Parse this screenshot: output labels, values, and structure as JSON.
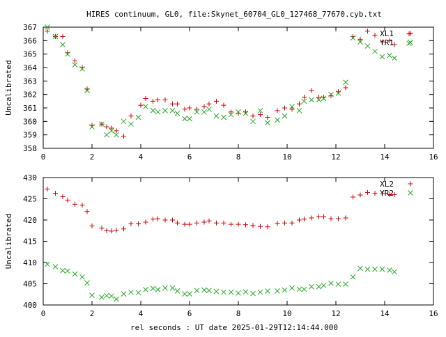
{
  "figure": {
    "title": "HIRES continuum, GL0, file:Skynet_60704_GL0_127468_77670.cyb.txt",
    "xlabel": "rel seconds : UT date 2025-01-29T12:14:44.000"
  },
  "colors": {
    "series_plus": "#cc0000",
    "series_cross": "#22aa22"
  },
  "chart_data": [
    {
      "type": "scatter",
      "ylabel": "Uncalibrated",
      "xlim": [
        0,
        16
      ],
      "ylim": [
        358,
        367
      ],
      "xticks": [
        0,
        2,
        4,
        6,
        8,
        10,
        12,
        14,
        16
      ],
      "yticks": [
        358,
        359,
        360,
        361,
        362,
        363,
        364,
        365,
        366,
        367
      ],
      "legend_position": "top-right",
      "series": [
        {
          "name": "XL1",
          "marker": "plus",
          "x": [
            0.17,
            0.5,
            0.8,
            1.0,
            1.3,
            1.6,
            1.8,
            2.0,
            2.4,
            2.6,
            2.8,
            3.0,
            3.3,
            3.6,
            4.0,
            4.2,
            4.5,
            4.7,
            5.0,
            5.3,
            5.5,
            5.8,
            6.0,
            6.3,
            6.6,
            6.8,
            7.1,
            7.4,
            7.7,
            8.0,
            8.3,
            8.6,
            8.9,
            9.2,
            9.6,
            9.9,
            10.2,
            10.5,
            10.7,
            11.0,
            11.3,
            11.5,
            11.8,
            12.1,
            12.4,
            12.7,
            13.0,
            13.3,
            13.6,
            13.9,
            14.2,
            14.4,
            15.0
          ],
          "y": [
            366.7,
            366.3,
            366.3,
            365.1,
            364.5,
            364.0,
            362.4,
            359.7,
            359.8,
            359.6,
            359.5,
            359.3,
            358.9,
            360.4,
            361.2,
            361.7,
            361.5,
            361.6,
            361.6,
            361.3,
            361.3,
            360.9,
            361.0,
            360.9,
            361.1,
            361.3,
            361.5,
            361.2,
            360.7,
            360.6,
            360.7,
            360.4,
            360.5,
            360.3,
            360.8,
            361.0,
            360.9,
            361.3,
            361.8,
            362.3,
            361.8,
            361.8,
            361.9,
            362.2,
            362.5,
            366.3,
            366.1,
            366.7,
            366.4,
            365.9,
            366.0,
            365.7,
            366.5
          ]
        },
        {
          "name": "YR1",
          "marker": "cross",
          "x": [
            0.17,
            0.5,
            0.8,
            1.0,
            1.3,
            1.6,
            1.8,
            2.0,
            2.4,
            2.6,
            2.8,
            3.0,
            3.3,
            3.6,
            3.9,
            4.2,
            4.5,
            4.7,
            5.0,
            5.3,
            5.5,
            5.8,
            6.0,
            6.3,
            6.6,
            6.8,
            7.1,
            7.4,
            7.7,
            8.0,
            8.3,
            8.6,
            8.9,
            9.2,
            9.6,
            9.9,
            10.2,
            10.5,
            10.7,
            11.0,
            11.3,
            11.5,
            11.8,
            12.1,
            12.4,
            12.7,
            13.0,
            13.3,
            13.6,
            13.9,
            14.2,
            14.4,
            15.0
          ],
          "y": [
            367.0,
            366.3,
            365.7,
            365.0,
            364.2,
            363.9,
            362.3,
            359.6,
            359.8,
            359.0,
            359.3,
            359.0,
            360.0,
            359.8,
            360.3,
            361.1,
            360.8,
            360.7,
            360.8,
            360.8,
            360.6,
            360.2,
            360.2,
            360.7,
            360.7,
            360.9,
            360.4,
            360.3,
            360.5,
            360.7,
            360.6,
            360.0,
            360.8,
            359.9,
            360.1,
            360.4,
            361.1,
            360.8,
            361.5,
            361.6,
            361.6,
            361.7,
            362.0,
            362.1,
            362.9,
            366.2,
            365.9,
            365.6,
            365.2,
            364.8,
            364.9,
            364.7,
            365.8
          ]
        }
      ]
    },
    {
      "type": "scatter",
      "ylabel": "Uncalibrated",
      "xlim": [
        0,
        16
      ],
      "ylim": [
        400,
        430
      ],
      "xticks": [
        0,
        2,
        4,
        6,
        8,
        10,
        12,
        14,
        16
      ],
      "yticks": [
        400,
        405,
        410,
        415,
        420,
        425,
        430
      ],
      "legend_position": "top-right",
      "series": [
        {
          "name": "XL2",
          "marker": "plus",
          "x": [
            0.17,
            0.5,
            0.8,
            1.0,
            1.3,
            1.6,
            1.8,
            2.0,
            2.4,
            2.6,
            2.8,
            3.0,
            3.3,
            3.6,
            3.9,
            4.2,
            4.5,
            4.7,
            5.0,
            5.3,
            5.5,
            5.8,
            6.0,
            6.3,
            6.6,
            6.8,
            7.1,
            7.4,
            7.7,
            8.0,
            8.3,
            8.6,
            8.9,
            9.2,
            9.6,
            9.9,
            10.2,
            10.5,
            10.7,
            11.0,
            11.3,
            11.5,
            11.8,
            12.1,
            12.4,
            12.7,
            13.0,
            13.3,
            13.6,
            13.9,
            14.2,
            14.4
          ],
          "y": [
            427.3,
            426.3,
            425.5,
            424.7,
            423.7,
            423.5,
            422.0,
            418.6,
            418.1,
            417.5,
            417.4,
            417.6,
            417.9,
            419.1,
            419.1,
            419.5,
            420.2,
            420.3,
            420.0,
            420.0,
            419.3,
            419.0,
            419.0,
            419.3,
            419.5,
            419.8,
            419.3,
            419.3,
            419.0,
            419.0,
            418.9,
            418.7,
            418.5,
            418.4,
            419.2,
            419.3,
            419.3,
            420.0,
            420.2,
            420.5,
            420.8,
            420.8,
            420.3,
            420.3,
            420.5,
            425.4,
            425.9,
            426.5,
            426.3,
            426.2,
            426.0,
            426.0
          ],
          "note_x_last": 15.0
        },
        {
          "name": "YR2",
          "marker": "cross",
          "x": [
            0.17,
            0.5,
            0.8,
            1.0,
            1.3,
            1.6,
            1.8,
            2.0,
            2.4,
            2.6,
            2.8,
            3.0,
            3.3,
            3.6,
            3.9,
            4.2,
            4.5,
            4.7,
            5.0,
            5.3,
            5.5,
            5.8,
            6.0,
            6.3,
            6.6,
            6.8,
            7.1,
            7.4,
            7.7,
            8.0,
            8.3,
            8.6,
            8.9,
            9.2,
            9.6,
            9.9,
            10.2,
            10.5,
            10.7,
            11.0,
            11.3,
            11.5,
            11.8,
            12.1,
            12.4,
            12.7,
            13.0,
            13.3,
            13.6,
            13.9,
            14.2,
            14.4
          ],
          "y": [
            409.6,
            409.0,
            408.1,
            408.0,
            407.3,
            406.6,
            405.2,
            402.3,
            401.8,
            402.2,
            402.1,
            401.4,
            402.6,
            403.0,
            402.9,
            403.6,
            403.9,
            403.6,
            404.0,
            404.0,
            403.3,
            402.6,
            402.6,
            403.4,
            403.5,
            403.4,
            403.2,
            403.0,
            403.0,
            402.8,
            403.1,
            402.7,
            403.0,
            403.3,
            403.3,
            403.5,
            404.0,
            403.7,
            403.7,
            404.3,
            404.3,
            404.6,
            405.1,
            404.9,
            404.9,
            406.6,
            408.6,
            408.4,
            408.4,
            408.4,
            408.2,
            407.8
          ]
        }
      ]
    }
  ]
}
